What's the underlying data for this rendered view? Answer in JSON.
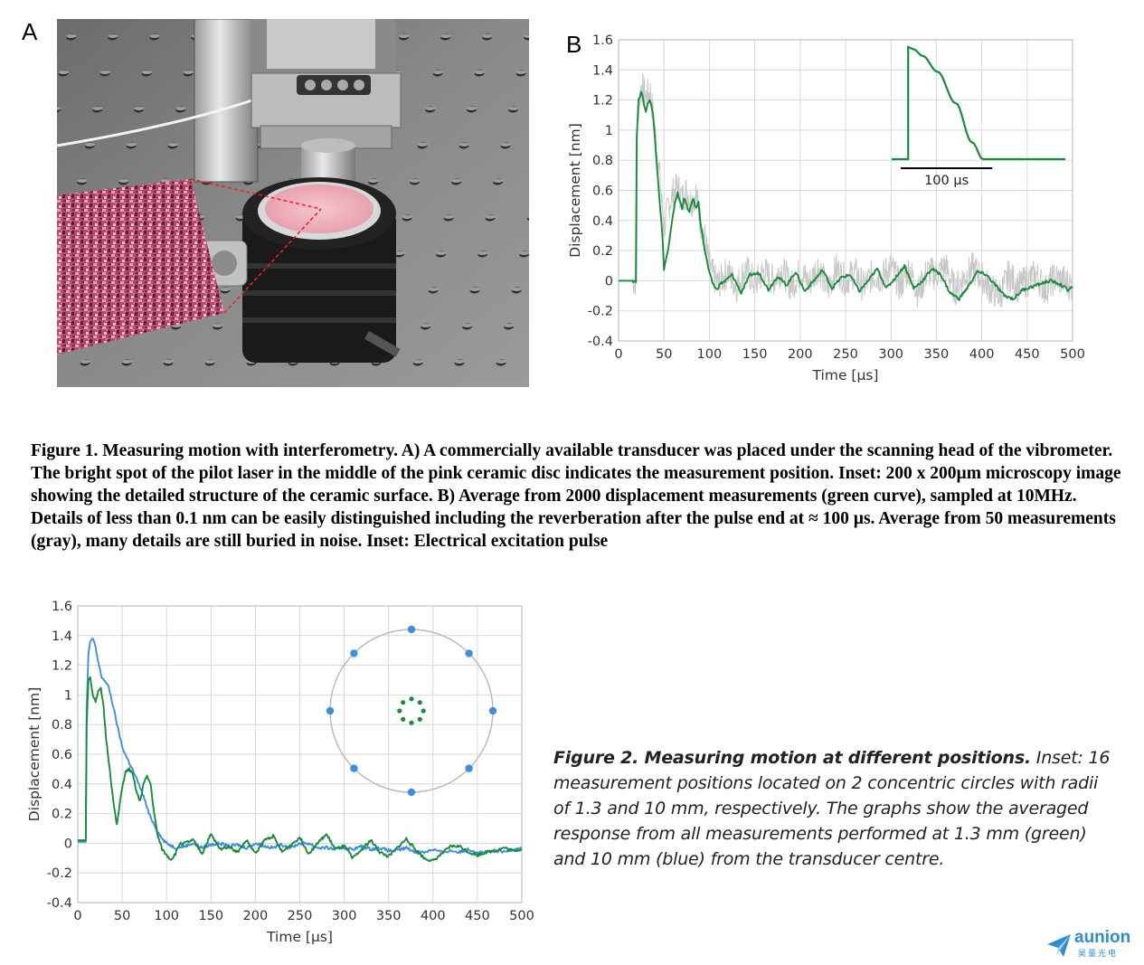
{
  "panel_a": {
    "letter": "A"
  },
  "panel_b": {
    "letter": "B"
  },
  "figure1": {
    "caption": "Figure 1. Measuring motion with interferometry. A) A commercially available transducer was placed under the scanning head of the vibrometer. The bright spot of the pilot laser in the middle of the pink ceramic disc indicates the measurement position. Inset: 200 x 200µm microscopy image showing the detailed structure of the ceramic surface. B) Average from 2000 displacement measurements (green curve), sampled at 10MHz. Details of less than 0.1 nm can be easily distinguished including the reverberation after the pulse end at ≈ 100 µs. Average from 50 measurements (gray), many details are still buried in noise. Inset: Electrical excitation pulse"
  },
  "figure2": {
    "caption_bold": "Figure 2. Measuring motion at different positions.",
    "caption_rest": " Inset: 16 measurement positions located on 2 concentric circles with radii of 1.3 and 10 mm, respectively. The graphs show the averaged response from all measurements performed at 1.3 mm (green) and 10 mm (blue) from the transducer centre."
  },
  "logo": {
    "name": "aunion",
    "sub": "昊量光电"
  },
  "colors": {
    "green": "#1a8a3c",
    "blue": "#3d8fe0",
    "gray": "#c8c8c8",
    "grid": "#d8d8d8"
  },
  "chart_data": [
    {
      "id": "fig1b",
      "type": "line",
      "xlabel": "Time [µs]",
      "ylabel": "Displacement [nm]",
      "xlim": [
        0,
        500
      ],
      "ylim": [
        -0.4,
        1.6
      ],
      "xticks": [
        0,
        50,
        100,
        150,
        200,
        250,
        300,
        350,
        400,
        450,
        500
      ],
      "yticks": [
        -0.4,
        -0.2,
        0,
        0.2,
        0.4,
        0.6,
        0.8,
        1,
        1.2,
        1.4,
        1.6
      ],
      "grid": true,
      "series": [
        {
          "name": "",
          "color": "gray",
          "x": [
            0,
            20,
            21,
            25,
            30,
            35,
            40,
            45,
            50,
            55,
            60,
            65,
            70,
            75,
            80,
            85,
            90,
            95,
            100,
            105,
            110,
            120,
            130,
            140,
            150,
            160,
            170,
            180,
            190,
            200,
            210,
            220,
            230,
            240,
            250,
            260,
            270,
            280,
            290,
            300,
            310,
            320,
            330,
            340,
            350,
            360,
            370,
            380,
            390,
            400,
            410,
            420,
            430,
            440,
            450,
            460,
            470,
            480,
            490,
            500
          ],
          "y": [
            0,
            0,
            1.1,
            1.3,
            1.22,
            1.25,
            1.0,
            0.72,
            0.35,
            0.5,
            0.58,
            0.62,
            0.55,
            0.6,
            0.52,
            0.58,
            0.4,
            0.28,
            0.1,
            0.02,
            -0.02,
            0.06,
            -0.04,
            0.08,
            -0.02,
            0.06,
            0.0,
            0.08,
            -0.04,
            0.06,
            -0.02,
            0.1,
            -0.06,
            0.08,
            0.0,
            0.06,
            -0.04,
            0.04,
            0.02,
            0.1,
            -0.04,
            0.08,
            -0.08,
            0.06,
            0.04,
            0.1,
            -0.06,
            0.02,
            0.08,
            0.02,
            -0.06,
            -0.1,
            0.04,
            -0.04,
            0.0,
            0.04,
            -0.06,
            0.02,
            0.0,
            -0.04
          ]
        },
        {
          "name": "",
          "color": "green",
          "x": [
            0,
            19,
            20,
            22,
            25,
            27,
            30,
            32,
            35,
            38,
            40,
            45,
            48,
            50,
            55,
            58,
            62,
            65,
            68,
            70,
            72,
            75,
            78,
            82,
            85,
            88,
            90,
            95,
            100,
            104,
            108,
            112,
            118,
            125,
            135,
            145,
            155,
            165,
            175,
            185,
            195,
            205,
            215,
            225,
            235,
            245,
            255,
            265,
            275,
            285,
            295,
            305,
            315,
            325,
            335,
            345,
            355,
            365,
            375,
            385,
            395,
            405,
            415,
            425,
            435,
            445,
            455,
            465,
            475,
            485,
            495,
            500
          ],
          "y": [
            0,
            0,
            0.95,
            1.2,
            1.26,
            1.2,
            1.12,
            1.18,
            1.2,
            1.1,
            0.95,
            0.55,
            0.32,
            0.08,
            0.22,
            0.35,
            0.52,
            0.58,
            0.52,
            0.48,
            0.55,
            0.5,
            0.45,
            0.55,
            0.48,
            0.52,
            0.4,
            0.2,
            0.05,
            -0.02,
            -0.06,
            -0.02,
            0.0,
            0.04,
            -0.08,
            0.04,
            0.05,
            -0.06,
            0.03,
            -0.03,
            0.06,
            -0.07,
            0.0,
            0.07,
            -0.05,
            0.02,
            0.04,
            -0.07,
            0.0,
            0.08,
            -0.05,
            0.02,
            0.1,
            -0.05,
            0.0,
            0.08,
            0.04,
            -0.08,
            -0.12,
            -0.04,
            0.06,
            0.04,
            -0.03,
            -0.1,
            -0.12,
            -0.06,
            -0.04,
            -0.02,
            0.0,
            -0.02,
            -0.06,
            -0.04
          ]
        }
      ],
      "inset": {
        "type": "line",
        "scale_label": "100 µs",
        "x": [
          0,
          18,
          18,
          24,
          34,
          50,
          70,
          88,
          100,
          110,
          190
        ],
        "y": [
          0,
          0,
          1.0,
          0.98,
          0.92,
          0.78,
          0.5,
          0.15,
          0,
          0,
          0
        ]
      }
    },
    {
      "id": "fig2",
      "type": "line",
      "xlabel": "Time [µs]",
      "ylabel": "Displacement [nm]",
      "xlim": [
        0,
        500
      ],
      "ylim": [
        -0.4,
        1.6
      ],
      "xticks": [
        0,
        50,
        100,
        150,
        200,
        250,
        300,
        350,
        400,
        450,
        500
      ],
      "yticks": [
        -0.4,
        -0.2,
        0,
        0.2,
        0.4,
        0.6,
        0.8,
        1,
        1.2,
        1.4,
        1.6
      ],
      "grid": true,
      "series": [
        {
          "name": "",
          "color": "blue",
          "x": [
            0,
            9,
            10,
            12,
            14,
            17,
            20,
            23,
            27,
            30,
            35,
            40,
            45,
            50,
            55,
            60,
            65,
            70,
            75,
            80,
            85,
            90,
            95,
            100,
            110,
            120,
            130,
            140,
            150,
            160,
            170,
            180,
            190,
            200,
            210,
            220,
            230,
            240,
            250,
            260,
            270,
            280,
            290,
            300,
            310,
            320,
            330,
            340,
            350,
            360,
            370,
            380,
            390,
            400,
            410,
            420,
            430,
            440,
            450,
            460,
            470,
            480,
            490,
            500
          ],
          "y": [
            0.01,
            0.01,
            0.9,
            1.28,
            1.36,
            1.38,
            1.32,
            1.22,
            1.12,
            1.1,
            1.05,
            0.92,
            0.78,
            0.65,
            0.58,
            0.52,
            0.45,
            0.38,
            0.3,
            0.2,
            0.14,
            0.08,
            0.03,
            0.0,
            -0.03,
            -0.02,
            0.0,
            -0.03,
            -0.01,
            0.0,
            -0.02,
            -0.01,
            -0.03,
            0.0,
            -0.02,
            -0.03,
            -0.01,
            -0.03,
            0.0,
            0.0,
            -0.03,
            -0.03,
            -0.04,
            -0.03,
            -0.04,
            -0.02,
            -0.04,
            -0.03,
            -0.05,
            -0.05,
            -0.03,
            -0.06,
            -0.06,
            -0.04,
            -0.06,
            -0.05,
            -0.06,
            -0.04,
            -0.06,
            -0.06,
            -0.05,
            -0.06,
            -0.04,
            -0.03
          ]
        },
        {
          "name": "",
          "color": "green",
          "x": [
            0,
            9,
            10,
            12,
            14,
            17,
            20,
            23,
            26,
            29,
            32,
            36,
            40,
            44,
            47,
            50,
            54,
            58,
            62,
            66,
            70,
            74,
            78,
            82,
            86,
            90,
            95,
            100,
            105,
            110,
            115,
            120,
            130,
            140,
            150,
            160,
            170,
            180,
            190,
            200,
            210,
            220,
            230,
            240,
            250,
            260,
            270,
            280,
            290,
            300,
            310,
            320,
            330,
            340,
            350,
            360,
            370,
            380,
            390,
            400,
            410,
            420,
            430,
            440,
            450,
            460,
            470,
            480,
            490,
            500
          ],
          "y": [
            0.02,
            0.02,
            0.8,
            1.1,
            1.12,
            1.0,
            0.96,
            1.02,
            1.04,
            0.92,
            0.7,
            0.5,
            0.28,
            0.12,
            0.25,
            0.38,
            0.48,
            0.5,
            0.46,
            0.35,
            0.28,
            0.4,
            0.45,
            0.4,
            0.2,
            0.05,
            -0.04,
            -0.08,
            -0.11,
            -0.07,
            0.0,
            0.0,
            0.02,
            -0.07,
            0.06,
            -0.04,
            -0.02,
            -0.06,
            0.02,
            -0.07,
            0.02,
            0.05,
            -0.06,
            -0.01,
            0.04,
            -0.07,
            0.0,
            0.06,
            -0.04,
            -0.02,
            -0.1,
            -0.04,
            0.02,
            -0.06,
            -0.09,
            -0.03,
            0.03,
            -0.04,
            -0.1,
            -0.12,
            -0.07,
            -0.02,
            -0.02,
            -0.06,
            -0.08,
            -0.06,
            -0.05,
            -0.03,
            -0.05,
            -0.04
          ]
        }
      ],
      "inset": {
        "type": "scatter",
        "outer_radius_mm": 10,
        "inner_radius_mm": 1.3,
        "outer_points": 8,
        "inner_points": 8
      }
    }
  ]
}
